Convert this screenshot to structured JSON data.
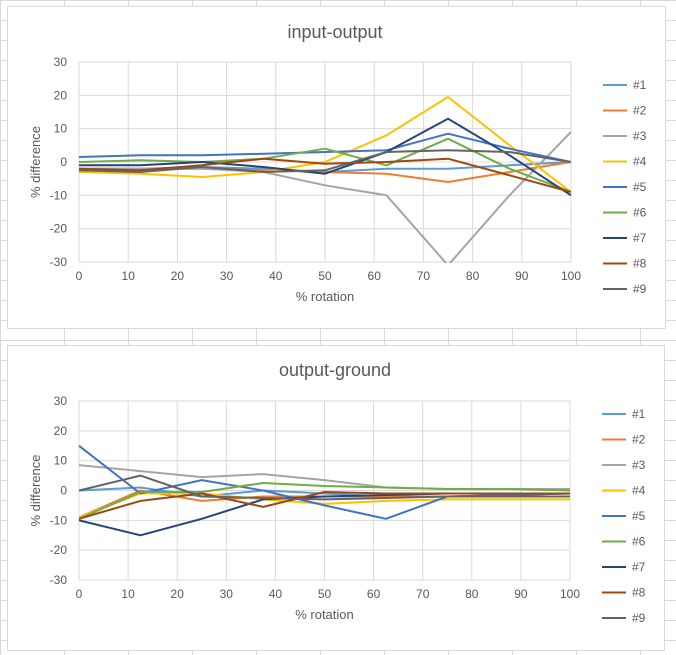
{
  "chart_data": [
    {
      "type": "line",
      "title": "input-output",
      "xlabel": "% rotation",
      "ylabel": "% difference",
      "xlim": [
        0,
        100
      ],
      "ylim": [
        -30,
        30
      ],
      "x_ticks": [
        "0",
        "10",
        "20",
        "30",
        "40",
        "50",
        "60",
        "70",
        "80",
        "90",
        "100"
      ],
      "y_ticks": [
        "30",
        "20",
        "10",
        "0",
        "-10",
        "-20",
        "-30"
      ],
      "grid": true,
      "legend": "right",
      "series": [
        {
          "name": "#1",
          "color": "#5b9bd5",
          "x": [
            0,
            12.5,
            25,
            37.5,
            50,
            62.5,
            75,
            87.5,
            100
          ],
          "y": [
            -2,
            -2,
            -1.5,
            -2,
            -3,
            -2,
            -2,
            -1,
            0
          ]
        },
        {
          "name": "#2",
          "color": "#ed7d31",
          "x": [
            0,
            12.5,
            25,
            37.5,
            50,
            62.5,
            75,
            87.5,
            100
          ],
          "y": [
            -2,
            -2,
            -2,
            -2.5,
            -3,
            -3.5,
            -6,
            -3,
            0
          ]
        },
        {
          "name": "#3",
          "color": "#a5a5a5",
          "x": [
            0,
            12.5,
            25,
            37.5,
            50,
            62.5,
            75,
            87.5,
            100
          ],
          "y": [
            -2,
            -2,
            -2,
            -3,
            -7,
            -10,
            -31,
            -10,
            9
          ]
        },
        {
          "name": "#4",
          "color": "#ffc000",
          "x": [
            0,
            12.5,
            25,
            37.5,
            50,
            62.5,
            75,
            87.5,
            100
          ],
          "y": [
            -3,
            -3.5,
            -4.5,
            -3,
            0,
            8,
            19.5,
            5,
            -9
          ]
        },
        {
          "name": "#5",
          "color": "#4472c4",
          "x": [
            0,
            12.5,
            25,
            37.5,
            50,
            62.5,
            75,
            87.5,
            100
          ],
          "y": [
            1.5,
            2,
            2,
            2.5,
            3,
            3.5,
            8.5,
            4,
            0
          ]
        },
        {
          "name": "#6",
          "color": "#70ad47",
          "x": [
            0,
            12.5,
            25,
            37.5,
            50,
            62.5,
            75,
            87.5,
            100
          ],
          "y": [
            0,
            0.5,
            0,
            1,
            4,
            -1,
            7,
            -2,
            -9
          ]
        },
        {
          "name": "#7",
          "color": "#264478",
          "x": [
            0,
            12.5,
            25,
            37.5,
            50,
            62.5,
            75,
            87.5,
            100
          ],
          "y": [
            -1,
            -1,
            0,
            -1.5,
            -3.5,
            3,
            13,
            2,
            -10
          ]
        },
        {
          "name": "#8",
          "color": "#9e480e",
          "x": [
            0,
            12.5,
            25,
            37.5,
            50,
            62.5,
            75,
            87.5,
            100
          ],
          "y": [
            -2,
            -2.5,
            -1,
            1,
            -0.5,
            0,
            1,
            -4,
            -9
          ]
        },
        {
          "name": "#9",
          "color": "#636363",
          "x": [
            0,
            12.5,
            25,
            37.5,
            50,
            62.5,
            75,
            87.5,
            100
          ],
          "y": [
            -2.5,
            -3,
            -1.5,
            -3,
            -2.5,
            3,
            3.5,
            3,
            0
          ]
        }
      ]
    },
    {
      "type": "line",
      "title": "output-ground",
      "xlabel": "% rotation",
      "ylabel": "% difference",
      "xlim": [
        0,
        100
      ],
      "ylim": [
        -30,
        30
      ],
      "x_ticks": [
        "0",
        "10",
        "20",
        "30",
        "40",
        "50",
        "60",
        "70",
        "80",
        "90",
        "100"
      ],
      "y_ticks": [
        "30",
        "20",
        "10",
        "0",
        "-10",
        "-20",
        "-30"
      ],
      "grid": true,
      "legend": "right",
      "series": [
        {
          "name": "#1",
          "color": "#5b9bd5",
          "x": [
            0,
            12.5,
            25,
            37.5,
            50,
            62.5,
            75,
            87.5,
            100
          ],
          "y": [
            0,
            1,
            -2,
            0,
            -1,
            -2,
            -2,
            -1.5,
            -1
          ]
        },
        {
          "name": "#2",
          "color": "#ed7d31",
          "x": [
            0,
            12.5,
            25,
            37.5,
            50,
            62.5,
            75,
            87.5,
            100
          ],
          "y": [
            -9,
            0,
            -3.5,
            -2,
            -2,
            -2,
            -2,
            -2,
            -2
          ]
        },
        {
          "name": "#3",
          "color": "#a5a5a5",
          "x": [
            0,
            12.5,
            25,
            37.5,
            50,
            62.5,
            75,
            87.5,
            100
          ],
          "y": [
            8.5,
            6.5,
            4.5,
            5.5,
            3.5,
            1,
            0.5,
            0.5,
            0.5
          ]
        },
        {
          "name": "#4",
          "color": "#ffc000",
          "x": [
            0,
            12.5,
            25,
            37.5,
            50,
            62.5,
            75,
            87.5,
            100
          ],
          "y": [
            -9,
            -1,
            -1,
            -3,
            -4.5,
            -3.5,
            -3,
            -3,
            -3
          ]
        },
        {
          "name": "#5",
          "color": "#4472c4",
          "x": [
            0,
            12.5,
            25,
            37.5,
            50,
            62.5,
            75,
            87.5,
            100
          ],
          "y": [
            15,
            -1,
            3.5,
            0,
            -5,
            -9.5,
            -2,
            -1.5,
            -1
          ]
        },
        {
          "name": "#6",
          "color": "#70ad47",
          "x": [
            0,
            12.5,
            25,
            37.5,
            50,
            62.5,
            75,
            87.5,
            100
          ],
          "y": [
            -9.5,
            -0.5,
            -0.5,
            2.5,
            1.5,
            1,
            0.5,
            0.5,
            0
          ]
        },
        {
          "name": "#7",
          "color": "#264478",
          "x": [
            0,
            12.5,
            25,
            37.5,
            50,
            62.5,
            75,
            87.5,
            100
          ],
          "y": [
            -10,
            -15,
            -9.5,
            -3,
            -2,
            -1.5,
            -1,
            -1,
            -1
          ]
        },
        {
          "name": "#8",
          "color": "#9e480e",
          "x": [
            0,
            12.5,
            25,
            37.5,
            50,
            62.5,
            75,
            87.5,
            100
          ],
          "y": [
            -9.5,
            -3.5,
            -1,
            -5.5,
            -0.5,
            -1,
            -1,
            -1,
            -1
          ]
        },
        {
          "name": "#9",
          "color": "#636363",
          "x": [
            0,
            12.5,
            25,
            37.5,
            50,
            62.5,
            75,
            87.5,
            100
          ],
          "y": [
            0,
            5,
            -2,
            -2.5,
            -3,
            -2.5,
            -2,
            -2,
            -2
          ]
        }
      ]
    }
  ]
}
